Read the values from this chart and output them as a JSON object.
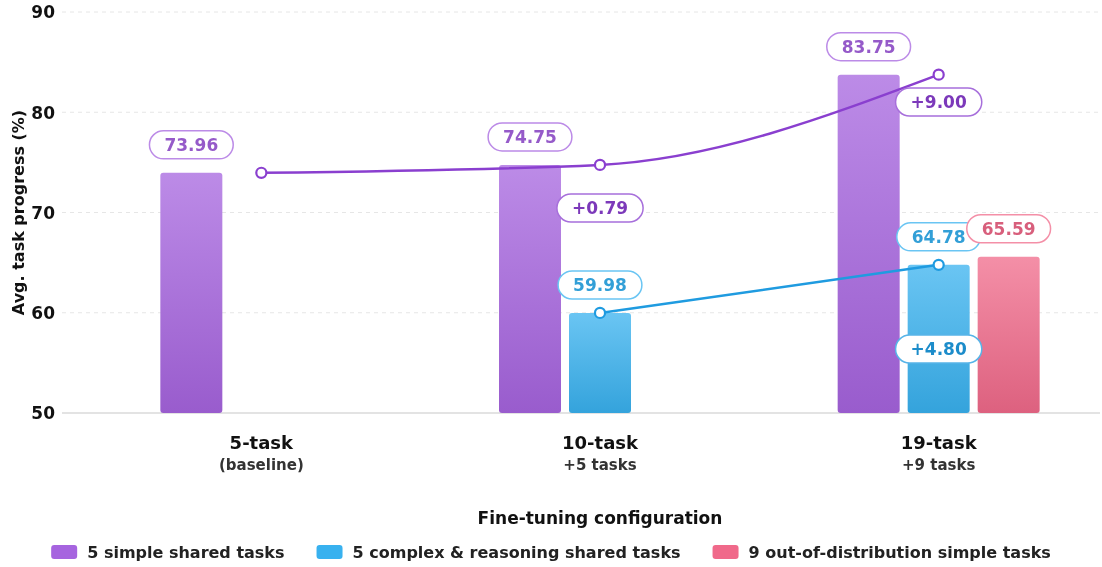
{
  "chart_data": {
    "type": "bar",
    "xlabel": "Fine-tuning configuration",
    "ylabel": "Avg. task progress (%)",
    "categories": [
      "5-task\n(baseline)",
      "10-task\n+5 tasks",
      "19-task\n+9 tasks"
    ],
    "series": [
      {
        "name": "5 simple shared tasks",
        "color": "#a664df",
        "values": [
          73.96,
          74.75,
          83.75
        ],
        "value_labels": [
          "73.96",
          "74.75",
          "83.75"
        ]
      },
      {
        "name": "5 complex & reasoning shared tasks",
        "color": "#38b1ef",
        "values": [
          null,
          59.98,
          64.78
        ],
        "value_labels": [
          null,
          "59.98",
          "64.78"
        ]
      },
      {
        "name": "9 out-of-distribution simple tasks",
        "color": "#f0698a",
        "values": [
          null,
          null,
          65.59
        ],
        "value_labels": [
          null,
          null,
          "65.59"
        ]
      },
      {
        "type": "line",
        "color": "#8a3fcf",
        "values": [
          73.96,
          74.75,
          83.75
        ]
      },
      {
        "type": "line",
        "color": "#1f9be0",
        "values": [
          null,
          59.98,
          64.78
        ]
      }
    ],
    "ylim": [
      50,
      90
    ],
    "yticks": [
      50,
      60,
      70,
      80,
      90
    ],
    "grid": "y",
    "legend": "bottom",
    "marker": "circle",
    "annotations": [
      "+0.79",
      "+9.00",
      "+4.80"
    ]
  }
}
